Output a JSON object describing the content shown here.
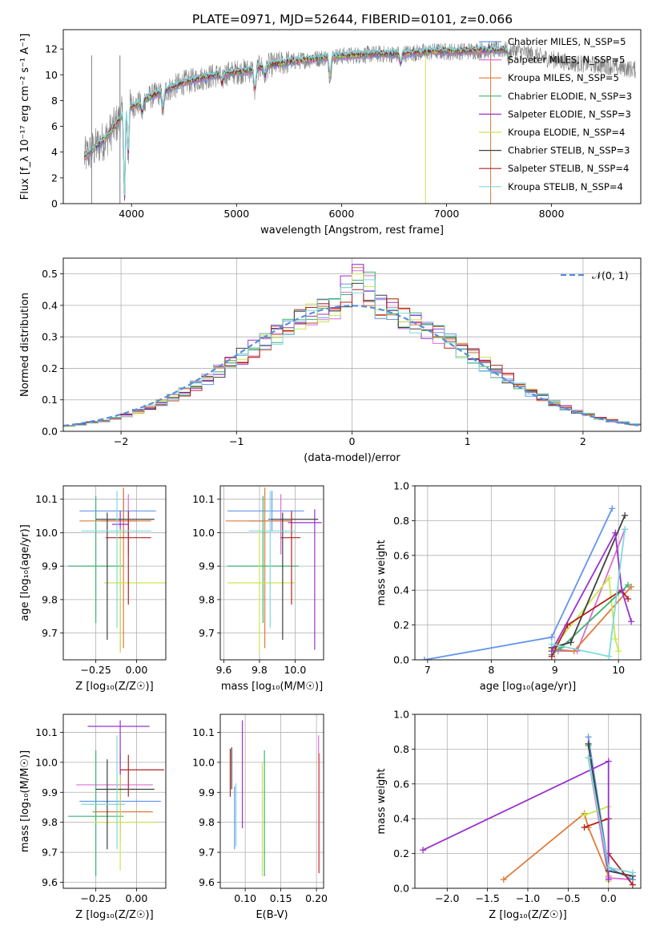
{
  "figure_title": "PLATE=0971, MJD=52644, FIBERID=0101, z=0.066",
  "colors": {
    "chabrier_miles": "#6495ED",
    "salpeter_miles": "#DA70D6",
    "kroupa_miles": "#E07B39",
    "chabrier_elodie": "#3CB371",
    "salpeter_elodie": "#9932CC",
    "kroupa_elodie": "#C8E84A",
    "chabrier_stelib": "#404040",
    "salpeter_stelib": "#B22222",
    "kroupa_stelib": "#7FD8DC",
    "data": "#808080",
    "normal": "#5B8DD9"
  },
  "chart_data": [
    {
      "id": "spectrum",
      "type": "line",
      "title": "PLATE=0971, MJD=52644, FIBERID=0101, z=0.066",
      "xlabel": "wavelength [Angstrom, rest frame]",
      "ylabel": "Flux [f_λ 10⁻¹⁷ erg cm⁻² s⁻¹ A⁻¹]",
      "xlim": [
        3350,
        8850
      ],
      "ylim": [
        0,
        13.5
      ],
      "xticks": [
        "4000",
        "5000",
        "6000",
        "7000",
        "8000"
      ],
      "yticks": [
        "0",
        "2",
        "4",
        "6",
        "8",
        "10",
        "12"
      ],
      "grid": false,
      "legend_position": "top-right",
      "legend": [
        "Chabrier MILES, N_SSP=5",
        "Salpeter MILES, N_SSP=5",
        "Kroupa MILES, N_SSP=5",
        "Chabrier ELODIE, N_SSP=3",
        "Salpeter ELODIE, N_SSP=3",
        "Kroupa ELODIE, N_SSP=4",
        "Chabrier STELIB, N_SSP=3",
        "Salpeter STELIB, N_SSP=4",
        "Kroupa STELIB, N_SSP=4"
      ],
      "continuum": {
        "x": [
          3550,
          3650,
          3750,
          3850,
          3950,
          4050,
          4150,
          4300,
          4500,
          4700,
          4900,
          5100,
          5300,
          5500,
          5700,
          5900,
          6100,
          6300,
          6500,
          6700,
          6900,
          7100,
          7300,
          7500,
          7600
        ],
        "y": [
          3.6,
          4.3,
          5.0,
          6.1,
          7.3,
          7.7,
          8.2,
          8.7,
          9.4,
          9.8,
          10.1,
          10.3,
          10.7,
          11.0,
          11.2,
          11.4,
          11.5,
          11.6,
          11.6,
          11.7,
          11.8,
          11.8,
          11.9,
          11.9,
          12.0
        ]
      },
      "data_continuum": {
        "x": [
          7600,
          7800,
          8000,
          8200,
          8400,
          8600,
          8800
        ],
        "y": [
          12.0,
          11.6,
          11.2,
          10.9,
          10.8,
          10.6,
          10.4
        ]
      },
      "absorption": [
        {
          "x": 3933,
          "depth": 7.5
        },
        {
          "x": 3968,
          "depth": 4.0
        },
        {
          "x": 4102,
          "depth": 1.0
        },
        {
          "x": 4300,
          "depth": 1.5
        },
        {
          "x": 4861,
          "depth": 0.8
        },
        {
          "x": 5175,
          "depth": 1.7
        },
        {
          "x": 5270,
          "depth": 0.8
        },
        {
          "x": 5890,
          "depth": 1.6
        },
        {
          "x": 6563,
          "depth": 0.8
        },
        {
          "x": 7594,
          "depth": 0.8
        }
      ]
    },
    {
      "id": "residual-hist",
      "type": "bar",
      "xlabel": "(data-model)/error",
      "ylabel": "Normed distribution",
      "xlim": [
        -2.5,
        2.5
      ],
      "ylim": [
        0,
        0.55
      ],
      "xticks": [
        "−2",
        "−1",
        "0",
        "1",
        "2"
      ],
      "yticks": [
        "0.0",
        "0.1",
        "0.2",
        "0.3",
        "0.4",
        "0.5"
      ],
      "grid": true,
      "legend_position": "top-right",
      "legend": [
        "𝒩(0, 1)"
      ],
      "bin_width": 0.1,
      "bin_start": -2.5,
      "base": [
        0.017,
        0.022,
        0.028,
        0.034,
        0.04,
        0.052,
        0.063,
        0.075,
        0.09,
        0.107,
        0.125,
        0.145,
        0.167,
        0.19,
        0.213,
        0.238,
        0.262,
        0.286,
        0.309,
        0.331,
        0.35,
        0.366,
        0.38,
        0.39,
        0.397,
        0.4,
        0.397,
        0.39,
        0.38,
        0.366,
        0.35,
        0.331,
        0.309,
        0.286,
        0.262,
        0.238,
        0.213,
        0.19,
        0.167,
        0.145,
        0.125,
        0.107,
        0.09,
        0.075,
        0.063,
        0.052,
        0.04,
        0.034,
        0.028,
        0.022
      ],
      "peaks": [
        0.53,
        0.51,
        0.52,
        0.48,
        0.53,
        0.5,
        0.47,
        0.45,
        0.44
      ]
    },
    {
      "id": "age-vs-z",
      "type": "scatter",
      "xlabel": "Z [log₁₀(Z/Z☉)]",
      "ylabel": "age  [log₁₀(age/yr)]",
      "xlim": [
        -0.45,
        0.18
      ],
      "ylim": [
        9.62,
        10.14
      ],
      "xticks": [
        "−0.25",
        "0.00"
      ],
      "yticks": [
        "9.7",
        "9.8",
        "9.9",
        "10.0",
        "10.1"
      ],
      "grid": true,
      "points": [
        {
          "x": -0.08,
          "y": 10.065,
          "xerr": [
            0.27,
            0.2
          ],
          "yerr": [
            0.06,
            0.06
          ]
        },
        {
          "x": -0.05,
          "y": 10.035,
          "xerr": [
            0.17,
            0.05
          ],
          "yerr": [
            0.1,
            0.08
          ]
        },
        {
          "x": -0.08,
          "y": 10.035,
          "xerr": [
            0.27,
            0.17
          ],
          "yerr": [
            0.38,
            0.1
          ]
        },
        {
          "x": -0.25,
          "y": 9.9,
          "xerr": [
            0.17,
            0.17
          ],
          "yerr": [
            0.17,
            0.21
          ]
        },
        {
          "x": -0.1,
          "y": 10.025,
          "xerr": [
            0.05,
            0.05
          ],
          "yerr": [
            0.38,
            0.04
          ]
        },
        {
          "x": -0.1,
          "y": 9.85,
          "xerr": [
            0.1,
            0.3
          ],
          "yerr": [
            0.21,
            0.16
          ]
        },
        {
          "x": -0.18,
          "y": 10.04,
          "xerr": [
            0.07,
            0.29
          ],
          "yerr": [
            0.36,
            0.02
          ]
        },
        {
          "x": -0.05,
          "y": 9.985,
          "xerr": [
            0.14,
            0.14
          ],
          "yerr": [
            0.2,
            0.08
          ]
        },
        {
          "x": -0.12,
          "y": 10.005,
          "xerr": [
            0.22,
            0.21
          ],
          "yerr": [
            0.29,
            0.12
          ]
        }
      ]
    },
    {
      "id": "age-vs-mass",
      "type": "scatter",
      "xlabel": "mass [log₁₀(M/M☉)]",
      "ylabel": "",
      "xlim": [
        9.58,
        10.16
      ],
      "ylim": [
        9.62,
        10.14
      ],
      "xticks": [
        "9.6",
        "9.8",
        "10.0"
      ],
      "yticks": [
        "9.7",
        "9.8",
        "9.9",
        "10.0",
        "10.1"
      ],
      "grid": true,
      "points": [
        {
          "x": 9.87,
          "y": 10.065,
          "xerr": [
            0.25,
            0.18
          ],
          "yerr": [
            0.06,
            0.06
          ]
        },
        {
          "x": 9.92,
          "y": 10.035,
          "xerr": [
            0.18,
            0.06
          ],
          "yerr": [
            0.1,
            0.08
          ]
        },
        {
          "x": 9.83,
          "y": 10.035,
          "xerr": [
            0.22,
            0.15
          ],
          "yerr": [
            0.38,
            0.1
          ]
        },
        {
          "x": 9.82,
          "y": 9.9,
          "xerr": [
            0.2,
            0.2
          ],
          "yerr": [
            0.17,
            0.21
          ]
        },
        {
          "x": 10.11,
          "y": 10.03,
          "xerr": [
            0.15,
            0.04
          ],
          "yerr": [
            0.38,
            0.04
          ]
        },
        {
          "x": 9.8,
          "y": 9.85,
          "xerr": [
            0.18,
            0.2
          ],
          "yerr": [
            0.21,
            0.16
          ]
        },
        {
          "x": 9.93,
          "y": 10.04,
          "xerr": [
            0.08,
            0.2
          ],
          "yerr": [
            0.36,
            0.02
          ]
        },
        {
          "x": 9.98,
          "y": 9.985,
          "xerr": [
            0.06,
            0.05
          ],
          "yerr": [
            0.2,
            0.08
          ]
        },
        {
          "x": 9.86,
          "y": 10.005,
          "xerr": [
            0.12,
            0.14
          ],
          "yerr": [
            0.29,
            0.12
          ]
        }
      ]
    },
    {
      "id": "weight-vs-age",
      "type": "line",
      "xlabel": "age  [log₁₀(age/yr)]",
      "ylabel": "mass weight",
      "xlim": [
        6.8,
        10.35
      ],
      "ylim": [
        0,
        1.0
      ],
      "xticks": [
        "7",
        "8",
        "9",
        "10"
      ],
      "yticks": [
        "0.0",
        "0.2",
        "0.4",
        "0.6",
        "0.8",
        "1.0"
      ],
      "grid": true,
      "series": [
        {
          "x": [
            6.95,
            8.95,
            9.9
          ],
          "y": [
            0.0,
            0.13,
            0.87
          ]
        },
        {
          "x": [
            8.95,
            9.05,
            9.35,
            10.1
          ],
          "y": [
            0.07,
            0.05,
            0.05,
            0.75
          ]
        },
        {
          "x": [
            8.95,
            9.0,
            9.3,
            10.2
          ],
          "y": [
            0.05,
            0.06,
            0.05,
            0.42
          ]
        },
        {
          "x": [
            8.95,
            9.1,
            10.15
          ],
          "y": [
            0.03,
            0.07,
            0.43
          ]
        },
        {
          "x": [
            8.95,
            9.95,
            10.05,
            10.2
          ],
          "y": [
            0.05,
            0.73,
            0.4,
            0.22
          ]
        },
        {
          "x": [
            8.95,
            9.85,
            9.95,
            10.0
          ],
          "y": [
            0.06,
            0.47,
            0.12,
            0.05
          ]
        },
        {
          "x": [
            8.95,
            9.25,
            10.1
          ],
          "y": [
            0.07,
            0.1,
            0.83
          ]
        },
        {
          "x": [
            8.95,
            9.2,
            10.05,
            10.15
          ],
          "y": [
            0.02,
            0.2,
            0.4,
            0.35
          ]
        },
        {
          "x": [
            8.95,
            9.85,
            10.1
          ],
          "y": [
            0.09,
            0.02,
            0.75
          ]
        }
      ]
    },
    {
      "id": "mass-vs-z",
      "type": "scatter",
      "xlabel": "Z [log₁₀(Z/Z☉)]",
      "ylabel": "mass [log₁₀(M/M☉)]",
      "xlim": [
        -0.45,
        0.18
      ],
      "ylim": [
        9.58,
        10.16
      ],
      "xticks": [
        "−0.25",
        "0.00"
      ],
      "yticks": [
        "9.6",
        "9.7",
        "9.8",
        "9.9",
        "10.0",
        "10.1"
      ],
      "grid": true,
      "points": [
        {
          "x": -0.1,
          "y": 9.87,
          "xerr": [
            0.25,
            0.25
          ],
          "yerr": [
            0.1,
            0.16
          ]
        },
        {
          "x": -0.1,
          "y": 9.925,
          "xerr": [
            0.27,
            0.2
          ],
          "yerr": [
            0.06,
            0.05
          ]
        },
        {
          "x": -0.1,
          "y": 9.835,
          "xerr": [
            0.17,
            0.2
          ],
          "yerr": [
            0.1,
            0.08
          ]
        },
        {
          "x": -0.25,
          "y": 9.82,
          "xerr": [
            0.17,
            0.17
          ],
          "yerr": [
            0.2,
            0.22
          ]
        },
        {
          "x": -0.1,
          "y": 10.12,
          "xerr": [
            0.2,
            0.18
          ],
          "yerr": [
            0.23,
            0.02
          ]
        },
        {
          "x": -0.1,
          "y": 9.8,
          "xerr": [
            0.17,
            0.22
          ],
          "yerr": [
            0.16,
            0.16
          ]
        },
        {
          "x": -0.18,
          "y": 9.91,
          "xerr": [
            0.07,
            0.29
          ],
          "yerr": [
            0.2,
            0.1
          ]
        },
        {
          "x": -0.05,
          "y": 9.975,
          "xerr": [
            0.05,
            0.22
          ],
          "yerr": [
            0.09,
            0.05
          ]
        },
        {
          "x": -0.12,
          "y": 9.86,
          "xerr": [
            0.22,
            0.05
          ],
          "yerr": [
            0.15,
            0.23
          ]
        }
      ]
    },
    {
      "id": "mass-vs-ebv",
      "type": "scatter",
      "xlabel": "E(B-V)",
      "ylabel": "",
      "xlim": [
        0.065,
        0.21
      ],
      "ylim": [
        9.58,
        10.16
      ],
      "xticks": [
        "0.10",
        "0.15",
        "0.20"
      ],
      "yticks": [
        "9.6",
        "9.7",
        "9.8",
        "9.9",
        "10.0",
        "10.1"
      ],
      "grid": true,
      "points": [
        {
          "x": 0.085,
          "y": 9.82,
          "xerr": [
            0,
            0
          ],
          "yerr": [
            0.11,
            0.1
          ]
        },
        {
          "x": 0.203,
          "y": 9.86,
          "xerr": [
            0,
            0
          ],
          "yerr": [
            0.23,
            0.23
          ]
        },
        {
          "x": 0.204,
          "y": 9.83,
          "xerr": [
            0,
            0
          ],
          "yerr": [
            0.2,
            0.2
          ]
        },
        {
          "x": 0.127,
          "y": 9.83,
          "xerr": [
            0,
            0
          ],
          "yerr": [
            0.21,
            0.21
          ]
        },
        {
          "x": 0.096,
          "y": 9.96,
          "xerr": [
            0,
            0
          ],
          "yerr": [
            0.18,
            0.18
          ]
        },
        {
          "x": 0.124,
          "y": 9.8,
          "xerr": [
            0,
            0
          ],
          "yerr": [
            0.18,
            0.2
          ]
        },
        {
          "x": 0.081,
          "y": 9.96,
          "xerr": [
            0,
            0
          ],
          "yerr": [
            0.05,
            0.09
          ]
        },
        {
          "x": 0.079,
          "y": 9.965,
          "xerr": [
            0,
            0
          ],
          "yerr": [
            0.08,
            0.08
          ]
        },
        {
          "x": 0.087,
          "y": 9.83,
          "xerr": [
            0,
            0
          ],
          "yerr": [
            0.11,
            0.1
          ]
        }
      ]
    },
    {
      "id": "weight-vs-z",
      "type": "line",
      "xlabel": "Z [log₁₀(Z/Z☉)]",
      "ylabel": "mass weight",
      "xlim": [
        -2.4,
        0.4
      ],
      "ylim": [
        0,
        1.0
      ],
      "xticks": [
        "−2.0",
        "−1.5",
        "−1.0",
        "−0.5",
        "0.0"
      ],
      "yticks": [
        "0.0",
        "0.2",
        "0.4",
        "0.6",
        "0.8",
        "1.0"
      ],
      "grid": true,
      "series": [
        {
          "x": [
            -0.25,
            0.0,
            0.3
          ],
          "y": [
            0.87,
            0.12,
            0.05
          ]
        },
        {
          "x": [
            -0.25,
            0.0,
            0.3
          ],
          "y": [
            0.75,
            0.06,
            0.05
          ]
        },
        {
          "x": [
            -1.3,
            -0.3,
            -0.25,
            0.0
          ],
          "y": [
            0.05,
            0.43,
            0.35,
            0.07
          ]
        },
        {
          "x": [
            -0.25,
            0.0,
            0.3
          ],
          "y": [
            0.82,
            0.1,
            0.07
          ]
        },
        {
          "x": [
            -2.3,
            0.0,
            0.0
          ],
          "y": [
            0.22,
            0.73,
            0.05
          ]
        },
        {
          "x": [
            -0.3,
            0.0,
            0.0
          ],
          "y": [
            0.42,
            0.47,
            0.04
          ]
        },
        {
          "x": [
            -0.25,
            0.0,
            0.3
          ],
          "y": [
            0.83,
            0.1,
            0.07
          ]
        },
        {
          "x": [
            -0.3,
            0.0,
            0.0,
            0.3
          ],
          "y": [
            0.35,
            0.4,
            0.2,
            0.02
          ]
        },
        {
          "x": [
            -0.25,
            0.0,
            0.3
          ],
          "y": [
            0.75,
            0.12,
            0.09
          ]
        }
      ]
    }
  ]
}
